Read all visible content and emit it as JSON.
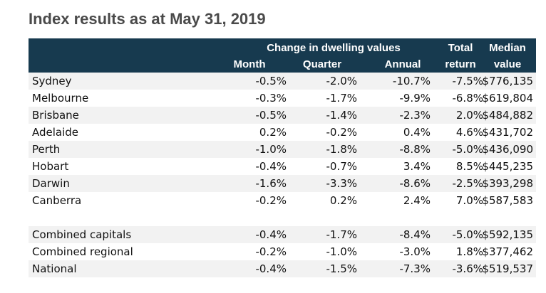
{
  "title": "Index results as at May 31, 2019",
  "header": {
    "group_label": "Change in dwelling values",
    "month": "Month",
    "quarter": "Quarter",
    "annual": "Annual",
    "total_line1": "Total",
    "total_line2": "return",
    "median_line1": "Median",
    "median_line2": "value"
  },
  "rows": [
    {
      "name": "Sydney",
      "month": "-0.5%",
      "quarter": "-2.0%",
      "annual": "-10.7%",
      "total": "-7.5%",
      "median": "$776,135"
    },
    {
      "name": "Melbourne",
      "month": "-0.3%",
      "quarter": "-1.7%",
      "annual": "-9.9%",
      "total": "-6.8%",
      "median": "$619,804"
    },
    {
      "name": "Brisbane",
      "month": "-0.5%",
      "quarter": "-1.4%",
      "annual": "-2.3%",
      "total": "2.0%",
      "median": "$484,882"
    },
    {
      "name": "Adelaide",
      "month": "0.2%",
      "quarter": "-0.2%",
      "annual": "0.4%",
      "total": "4.6%",
      "median": "$431,702"
    },
    {
      "name": "Perth",
      "month": "-1.0%",
      "quarter": "-1.8%",
      "annual": "-8.8%",
      "total": "-5.0%",
      "median": "$436,090"
    },
    {
      "name": "Hobart",
      "month": "-0.4%",
      "quarter": "-0.7%",
      "annual": "3.4%",
      "total": "8.5%",
      "median": "$445,235"
    },
    {
      "name": "Darwin",
      "month": "-1.6%",
      "quarter": "-3.3%",
      "annual": "-8.6%",
      "total": "-2.5%",
      "median": "$393,298"
    },
    {
      "name": "Canberra",
      "month": "-0.2%",
      "quarter": "0.2%",
      "annual": "2.4%",
      "total": "7.0%",
      "median": "$587,583"
    }
  ],
  "summary_rows": [
    {
      "name": "Combined capitals",
      "month": "-0.4%",
      "quarter": "-1.7%",
      "annual": "-8.4%",
      "total": "-5.0%",
      "median": "$592,135"
    },
    {
      "name": "Combined regional",
      "month": "-0.2%",
      "quarter": "-1.0%",
      "annual": "-3.0%",
      "total": "1.8%",
      "median": "$377,462"
    },
    {
      "name": "National",
      "month": "-0.4%",
      "quarter": "-1.5%",
      "annual": "-7.3%",
      "total": "-3.6%",
      "median": "$519,537"
    }
  ],
  "colors": {
    "header_bg": "#173a4f",
    "stripe": "#f2f2f2"
  }
}
